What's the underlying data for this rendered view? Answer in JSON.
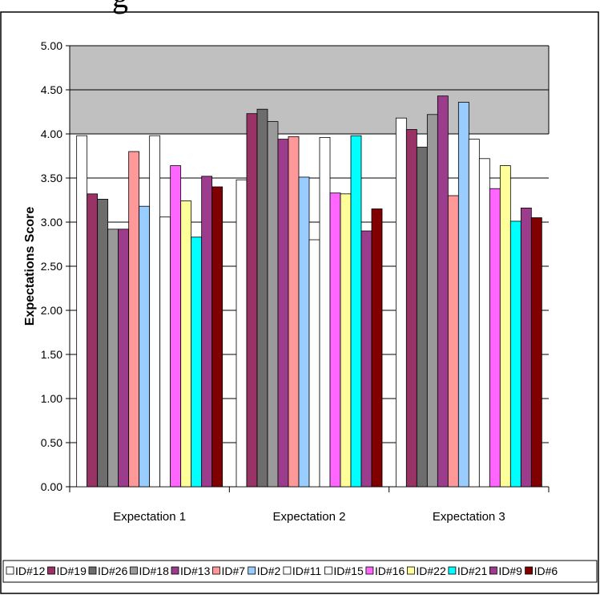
{
  "header": {
    "partial_title": "g"
  },
  "chart_data": {
    "type": "bar",
    "title": "",
    "xlabel": "",
    "ylabel": "Expectations Score",
    "ylim": [
      0,
      5
    ],
    "yticks": [
      "0.00",
      "0.50",
      "1.00",
      "1.50",
      "2.00",
      "2.50",
      "3.00",
      "3.50",
      "4.00",
      "4.50",
      "5.00"
    ],
    "grid": true,
    "legend_position": "bottom",
    "plot_background_above": "#c0c0c0",
    "categories": [
      "Expectation 1",
      "Expectation 2",
      "Expectation 3"
    ],
    "series": [
      {
        "name": "ID#12",
        "color": "#ffffff",
        "values": [
          3.98,
          3.48,
          4.18
        ]
      },
      {
        "name": "ID#19",
        "color": "#993366",
        "values": [
          3.32,
          4.23,
          4.05
        ]
      },
      {
        "name": "ID#26",
        "color": "#6d6d6d",
        "values": [
          3.26,
          4.28,
          3.85
        ]
      },
      {
        "name": "ID#18",
        "color": "#9a9a9a",
        "values": [
          2.92,
          4.14,
          4.22
        ]
      },
      {
        "name": "ID#13",
        "color": "#9c3c8c",
        "values": [
          2.92,
          3.94,
          4.43
        ]
      },
      {
        "name": "ID#7",
        "color": "#ff9999",
        "values": [
          3.8,
          3.97,
          3.3
        ]
      },
      {
        "name": "ID#2",
        "color": "#99ccff",
        "values": [
          3.18,
          3.51,
          4.36
        ]
      },
      {
        "name": "ID#11",
        "color": "#ffffff",
        "values": [
          3.98,
          2.8,
          3.94
        ]
      },
      {
        "name": "ID#15",
        "color": "#ffffff",
        "values": [
          3.06,
          3.96,
          3.72
        ]
      },
      {
        "name": "ID#16",
        "color": "#ff66ff",
        "values": [
          3.64,
          3.33,
          3.38
        ]
      },
      {
        "name": "ID#22",
        "color": "#ffff99",
        "values": [
          3.24,
          3.32,
          3.64
        ]
      },
      {
        "name": "ID#21",
        "color": "#00ffff",
        "values": [
          2.83,
          3.98,
          3.01
        ]
      },
      {
        "name": "ID#9",
        "color": "#9c3c8c",
        "values": [
          3.52,
          2.9,
          3.16
        ]
      },
      {
        "name": "ID#6",
        "color": "#800000",
        "values": [
          3.4,
          3.15,
          3.05
        ]
      }
    ]
  }
}
